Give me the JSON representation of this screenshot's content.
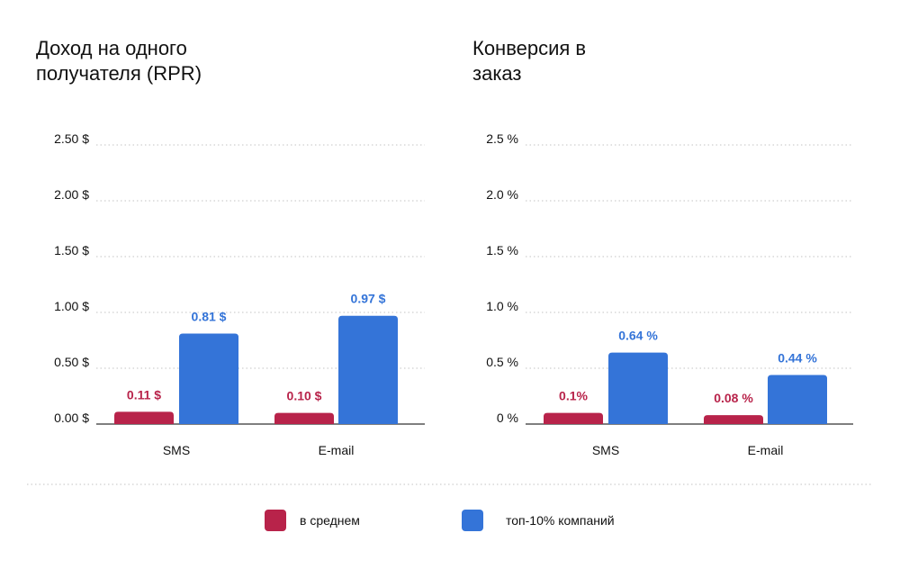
{
  "colors": {
    "average": "#B8234A",
    "top10": "#3474D8",
    "grid": "#cfcfcf",
    "axis": "#555555"
  },
  "legend": [
    {
      "label": "в среднем",
      "color": "#B8234A"
    },
    {
      "label": "топ-10% компаний",
      "color": "#3474D8"
    }
  ],
  "chart_data": [
    {
      "type": "bar",
      "title": "Доход на одного получателя (RPR)",
      "categories": [
        "SMS",
        "E-mail"
      ],
      "series": [
        {
          "name": "в среднем",
          "values": [
            0.11,
            0.1
          ],
          "labels": [
            "0.11 $",
            "0.10 $"
          ]
        },
        {
          "name": "топ-10% компаний",
          "values": [
            0.81,
            0.97
          ],
          "labels": [
            "0.81 $",
            "0.97 $"
          ]
        }
      ],
      "yticks": [
        "0.00 $",
        "0.50 $",
        "1.00 $",
        "1.50 $",
        "2.00 $",
        "2.50 $"
      ],
      "ytick_values": [
        0,
        0.5,
        1,
        1.5,
        2,
        2.5
      ],
      "ylim": [
        0,
        2.5
      ],
      "grid": true,
      "legend": "bottom-center"
    },
    {
      "type": "bar",
      "title": "Конверсия в заказ",
      "categories": [
        "SMS",
        "E-mail"
      ],
      "series": [
        {
          "name": "в среднем",
          "values": [
            0.1,
            0.08
          ],
          "labels": [
            "0.1%",
            "0.08 %"
          ]
        },
        {
          "name": "топ-10% компаний",
          "values": [
            0.64,
            0.44
          ],
          "labels": [
            "0.64 %",
            "0.44 %"
          ]
        }
      ],
      "yticks": [
        "0 %",
        "0.5 %",
        "1.0 %",
        "1.5 %",
        "2.0 %",
        "2.5 %"
      ],
      "ytick_values": [
        0,
        0.5,
        1,
        1.5,
        2,
        2.5
      ],
      "ylim": [
        0,
        2.5
      ],
      "grid": true,
      "legend": "bottom-center"
    }
  ]
}
